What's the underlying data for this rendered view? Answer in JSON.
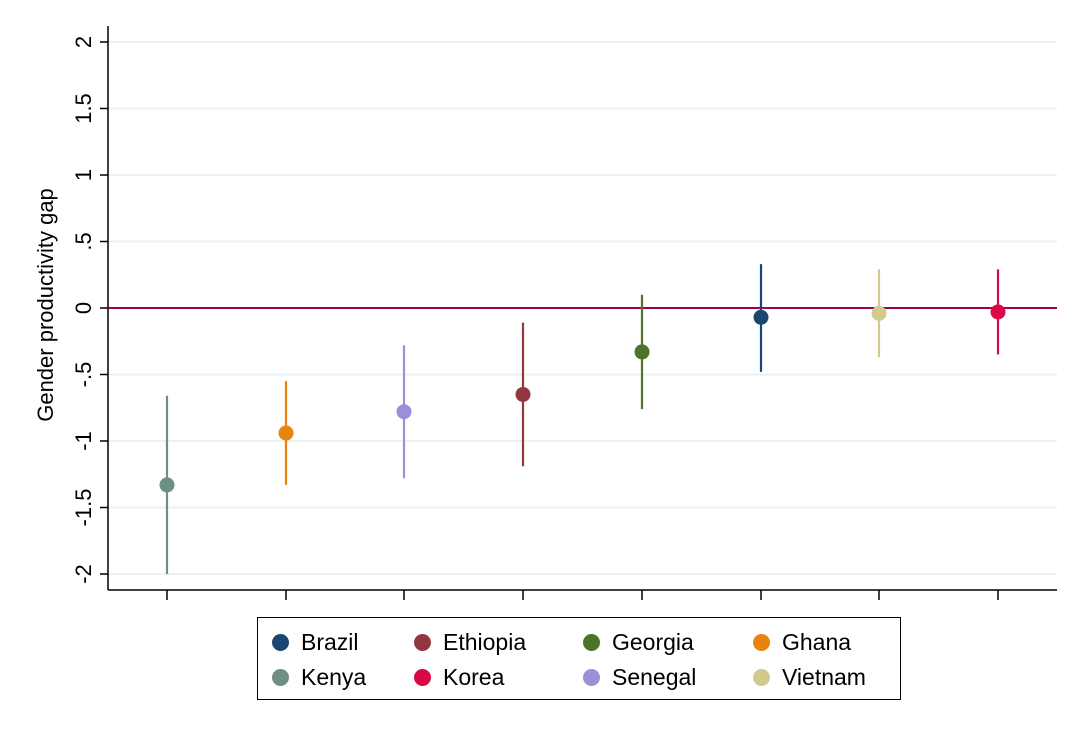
{
  "chart_data": {
    "type": "scatter",
    "title": "",
    "xlabel": "",
    "ylabel": "Gender productivity gap",
    "ylim": [
      -2,
      2
    ],
    "yticks": [
      2,
      1.5,
      1,
      0.5,
      0,
      -0.5,
      -1,
      -1.5,
      -2
    ],
    "ytick_labels": [
      "2",
      "1.5",
      "1",
      ".5",
      "0",
      "-.5",
      "-1",
      "-1.5",
      "-2"
    ],
    "reference_line": {
      "y": 0,
      "color": "#a0004a"
    },
    "grid": true,
    "legend_position": "bottom",
    "series": [
      {
        "name": "Kenya",
        "color": "#6e8f86",
        "estimate": -1.33,
        "ci": [
          -2.0,
          -0.66
        ]
      },
      {
        "name": "Ghana",
        "color": "#e8840e",
        "estimate": -0.94,
        "ci": [
          -1.33,
          -0.55
        ]
      },
      {
        "name": "Senegal",
        "color": "#9b8fd8",
        "estimate": -0.78,
        "ci": [
          -1.28,
          -0.28
        ]
      },
      {
        "name": "Ethiopia",
        "color": "#943640",
        "estimate": -0.65,
        "ci": [
          -1.19,
          -0.11
        ]
      },
      {
        "name": "Georgia",
        "color": "#4d7228",
        "estimate": -0.33,
        "ci": [
          -0.76,
          0.1
        ]
      },
      {
        "name": "Brazil",
        "color": "#1a476f",
        "estimate": -0.07,
        "ci": [
          -0.48,
          0.33
        ]
      },
      {
        "name": "Vietnam",
        "color": "#d2c98c",
        "estimate": -0.04,
        "ci": [
          -0.37,
          0.29
        ]
      },
      {
        "name": "Korea",
        "color": "#d70a45",
        "estimate": -0.03,
        "ci": [
          -0.35,
          0.29
        ]
      }
    ],
    "legend_order": [
      "Brazil",
      "Ethiopia",
      "Georgia",
      "Ghana",
      "Kenya",
      "Korea",
      "Senegal",
      "Vietnam"
    ]
  }
}
